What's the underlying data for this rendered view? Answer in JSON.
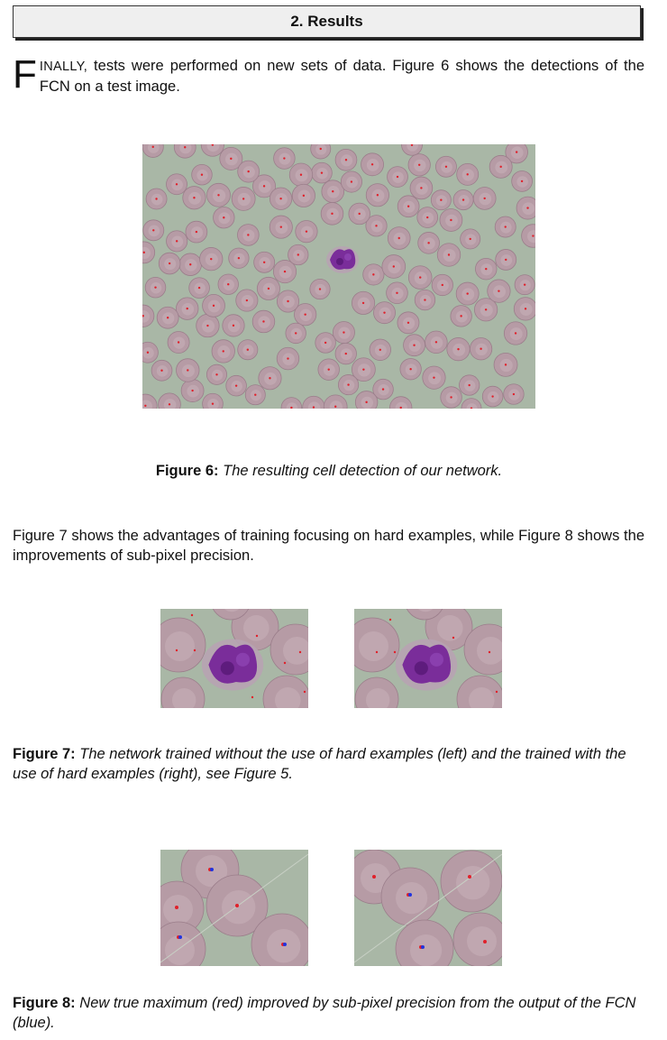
{
  "section": {
    "title": "2. Results"
  },
  "intro": {
    "dropcap": "F",
    "smallcaps": "INALLY,",
    "text": " tests were performed on new sets of data.  Figure 6 shows the detections of the FCN on a test image."
  },
  "figure6": {
    "label": "Figure 6:",
    "caption": "The resulting cell detection of our network."
  },
  "paragraph2": {
    "text": "Figure 7 shows the advantages of training focusing on hard examples, while Figure 8 shows the improvements of sub-pixel precision."
  },
  "figure7": {
    "label": "Figure 7:",
    "caption": "The network trained without the use of hard examples (left) and the trained with the use of hard examples (right), see Figure 5."
  },
  "figure8": {
    "label": "Figure 8:",
    "caption": "New true maximum (red) improved by sub-pixel precision from the output of the FCN (blue)."
  },
  "colors": {
    "background_tissue": "#a9b7a6",
    "red_cell": "#b69ba5",
    "nucleus": "#7a2d9a",
    "detection_red": "#e0202a",
    "detection_blue": "#2033e0"
  }
}
